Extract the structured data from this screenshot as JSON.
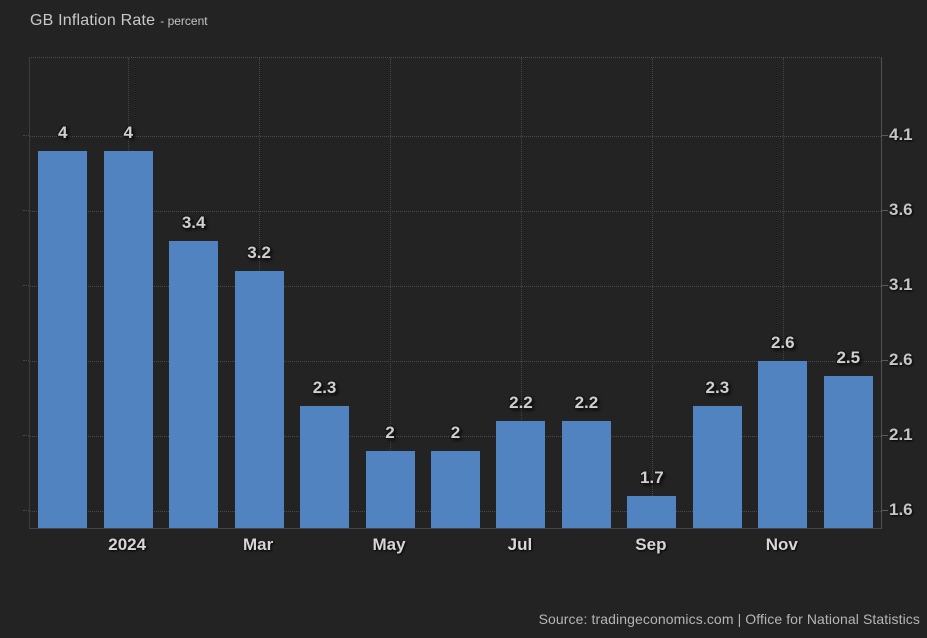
{
  "title": {
    "text": "GB Inflation Rate",
    "subtitle": "- percent"
  },
  "footer": {
    "source": "Source: tradingeconomics.com | Office for National Statistics"
  },
  "colors": {
    "background": "#232323",
    "bar": "#5283c1",
    "grid": "#4a4a4a",
    "text": "#cccccc"
  },
  "chart_data": {
    "type": "bar",
    "title": "GB Inflation Rate",
    "ylabel": "percent",
    "xlabel": "",
    "values": [
      4,
      4,
      3.4,
      3.2,
      2.3,
      2,
      2,
      2.2,
      2.2,
      1.7,
      2.3,
      2.6,
      2.5
    ],
    "bar_labels": [
      "4",
      "4",
      "3.4",
      "3.2",
      "2.3",
      "2",
      "2",
      "2.2",
      "2.2",
      "1.7",
      "2.3",
      "2.6",
      "2.5"
    ],
    "x_ticks": [
      {
        "index": 1,
        "label": "2024"
      },
      {
        "index": 3,
        "label": "Mar"
      },
      {
        "index": 5,
        "label": "May"
      },
      {
        "index": 7,
        "label": "Jul"
      },
      {
        "index": 9,
        "label": "Sep"
      },
      {
        "index": 11,
        "label": "Nov"
      }
    ],
    "y_ticks": [
      4.1,
      3.6,
      3.1,
      2.6,
      2.1,
      1.6
    ],
    "ylim": [
      1.49,
      4.62
    ],
    "yaxis_position": "right",
    "grid": "dotted",
    "legend": "none",
    "bar_color": "#5283c1"
  }
}
